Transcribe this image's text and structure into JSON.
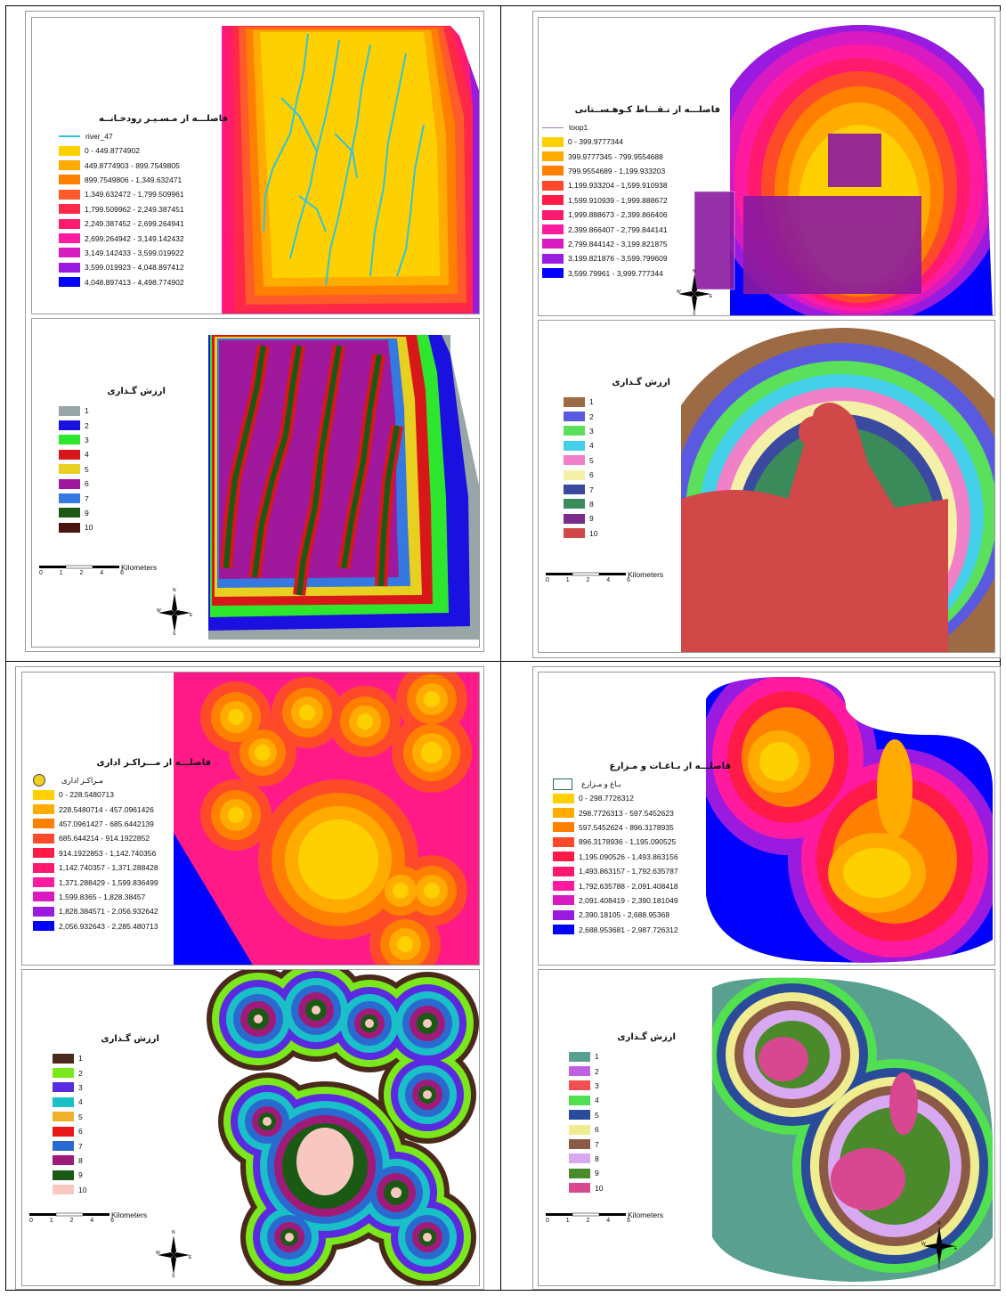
{
  "panels": {
    "river": {
      "top": {
        "title": "فاصلـــه از مـسـیـر رودخـانــه",
        "symbol_label": "river_47",
        "classes": [
          {
            "label": "0 - 449.8774902",
            "color": "#ffd000"
          },
          {
            "label": "449.8774903 - 899.7549805",
            "color": "#ffab00"
          },
          {
            "label": "899.7549806 - 1,349.632471",
            "color": "#ff8000"
          },
          {
            "label": "1,349.632472 - 1,799.509961",
            "color": "#ff5a2a"
          },
          {
            "label": "1,799.509962 - 2,249.387451",
            "color": "#ff2848"
          },
          {
            "label": "2,249.387452 - 2,699.264941",
            "color": "#ff1a6e"
          },
          {
            "label": "2,699.264942 - 3,149.142432",
            "color": "#ff1aa0"
          },
          {
            "label": "3,149.142433 - 3,599.019922",
            "color": "#d81ac0"
          },
          {
            "label": "3,599.019923 - 4,048.897412",
            "color": "#9a1ae0"
          },
          {
            "label": "4,048.897413 - 4,498.774902",
            "color": "#0000ff"
          }
        ]
      },
      "bottom": {
        "title": "ارزش گـذاری",
        "classes": [
          {
            "label": "1",
            "color": "#98a6a8"
          },
          {
            "label": "2",
            "color": "#1a10e0"
          },
          {
            "label": "3",
            "color": "#2ee62e"
          },
          {
            "label": "4",
            "color": "#d81818"
          },
          {
            "label": "5",
            "color": "#e8d020"
          },
          {
            "label": "6",
            "color": "#a0189c"
          },
          {
            "label": "7",
            "color": "#3478e0"
          },
          {
            "label": "9",
            "color": "#1a5a14"
          },
          {
            "label": "10",
            "color": "#4a1414"
          }
        ],
        "scale_unit": "Kilometers",
        "scale_ticks": [
          "0",
          "1",
          "2",
          "4",
          "6"
        ]
      }
    },
    "mountain": {
      "top": {
        "title": "فاصلـــه از نـقـــاط کـوهـســتانی",
        "symbol_label": "toop1",
        "classes": [
          {
            "label": "0 - 399.9777344",
            "color": "#ffd000"
          },
          {
            "label": "399.9777345 - 799.9554688",
            "color": "#ffab00"
          },
          {
            "label": "799.9554689 - 1,199.933203",
            "color": "#ff8000"
          },
          {
            "label": "1,199.933204 - 1,599.910938",
            "color": "#ff4a2a"
          },
          {
            "label": "1,599.910939 - 1,999.888672",
            "color": "#ff1a48"
          },
          {
            "label": "1,999.888673 - 2,399.866406",
            "color": "#ff1a70"
          },
          {
            "label": "2,399.866407 - 2,799.844141",
            "color": "#ff1aa0"
          },
          {
            "label": "2,799.844142 - 3,199.821875",
            "color": "#d81ac0"
          },
          {
            "label": "3,199.821876 - 3,599.799609",
            "color": "#9a1ae0"
          },
          {
            "label": "3,599.79961 - 3,999.777344",
            "color": "#0000ff"
          }
        ],
        "compass": [
          "N",
          "E",
          "S",
          "W"
        ]
      },
      "bottom": {
        "title": "ارزش گـذاری",
        "classes": [
          {
            "label": "1",
            "color": "#9c6a44"
          },
          {
            "label": "2",
            "color": "#5a5ae0"
          },
          {
            "label": "3",
            "color": "#5ae05a"
          },
          {
            "label": "4",
            "color": "#44d0e8"
          },
          {
            "label": "5",
            "color": "#f080c8"
          },
          {
            "label": "6",
            "color": "#f4f0a8"
          },
          {
            "label": "7",
            "color": "#3a4aa0"
          },
          {
            "label": "8",
            "color": "#3a8a5a"
          },
          {
            "label": "9",
            "color": "#7a2a8a"
          },
          {
            "label": "10",
            "color": "#d04848"
          }
        ],
        "scale_unit": "Kilometers",
        "scale_ticks": [
          "0",
          "1",
          "2",
          "4",
          "6"
        ]
      }
    },
    "admin": {
      "top": {
        "title": "فاصلـــه از مـــراکـز اداری",
        "symbol_label": "مـراکـز اداری",
        "classes": [
          {
            "label": "0 - 228.5480713",
            "color": "#ffd000"
          },
          {
            "label": "228.5480714 - 457.0961426",
            "color": "#ffab00"
          },
          {
            "label": "457.0961427 - 685.6442139",
            "color": "#ff8000"
          },
          {
            "label": "685.644214 - 914.1922852",
            "color": "#ff4a2a"
          },
          {
            "label": "914.1922853 - 1,142.740356",
            "color": "#ff1a48"
          },
          {
            "label": "1,142.740357 - 1,371.288428",
            "color": "#ff1a70"
          },
          {
            "label": "1,371.288429 - 1,599.836499",
            "color": "#ff1aa0"
          },
          {
            "label": "1,599.8365 - 1,828.38457",
            "color": "#d81ac0"
          },
          {
            "label": "1,828.384571 - 2,056.932642",
            "color": "#9a1ae0"
          },
          {
            "label": "2,056.932643 - 2,285.480713",
            "color": "#0000ff"
          }
        ]
      },
      "bottom": {
        "title": "ارزش گـذاری",
        "classes": [
          {
            "label": "1",
            "color": "#4a2a1a"
          },
          {
            "label": "2",
            "color": "#7ae81a"
          },
          {
            "label": "3",
            "color": "#5a2ae0"
          },
          {
            "label": "4",
            "color": "#1ac0c8"
          },
          {
            "label": "5",
            "color": "#f0b02a"
          },
          {
            "label": "6",
            "color": "#e81818"
          },
          {
            "label": "7",
            "color": "#2a6ad0"
          },
          {
            "label": "8",
            "color": "#a01a7a"
          },
          {
            "label": "9",
            "color": "#1a5a14"
          },
          {
            "label": "10",
            "color": "#f8c8c0"
          }
        ],
        "scale_unit": "Kilometers",
        "scale_ticks": [
          "0",
          "1",
          "2",
          "4",
          "6"
        ],
        "compass": [
          "N",
          "E",
          "S",
          "W"
        ]
      }
    },
    "gardens": {
      "top": {
        "title": "فاصلـــه از بـاغـات و مـزارع",
        "symbol_label": "بـاغ و مـزارع",
        "classes": [
          {
            "label": "0 - 298.7726312",
            "color": "#ffd000"
          },
          {
            "label": "298.7726313 - 597.5452623",
            "color": "#ffab00"
          },
          {
            "label": "597.5452624 - 896.3178935",
            "color": "#ff8000"
          },
          {
            "label": "896.3178936 - 1,195.090525",
            "color": "#ff4a2a"
          },
          {
            "label": "1,195.090526 - 1,493.863156",
            "color": "#ff1a48"
          },
          {
            "label": "1,493.863157 - 1,792.635787",
            "color": "#ff1a70"
          },
          {
            "label": "1,792.635788 - 2,091.408418",
            "color": "#ff1aa0"
          },
          {
            "label": "2,091.408419 - 2,390.181049",
            "color": "#d81ac0"
          },
          {
            "label": "2,390.18105 - 2,688.95368",
            "color": "#9a1ae0"
          },
          {
            "label": "2,688.953681 - 2,987.726312",
            "color": "#0000ff"
          }
        ]
      },
      "bottom": {
        "title": "ارزش گـذاری",
        "classes": [
          {
            "label": "1",
            "color": "#5aa090"
          },
          {
            "label": "2",
            "color": "#c060e0"
          },
          {
            "label": "3",
            "color": "#f05050"
          },
          {
            "label": "4",
            "color": "#50e050"
          },
          {
            "label": "5",
            "color": "#2a4a9a"
          },
          {
            "label": "6",
            "color": "#f0ec90"
          },
          {
            "label": "7",
            "color": "#8a5a44"
          },
          {
            "label": "8",
            "color": "#d8a8f0"
          },
          {
            "label": "9",
            "color": "#4a8a2a"
          },
          {
            "label": "10",
            "color": "#d84890"
          }
        ],
        "scale_unit": "Kilometers",
        "scale_ticks": [
          "0",
          "1",
          "2",
          "4",
          "6"
        ],
        "compass": [
          "N",
          "E",
          "S",
          "W"
        ]
      }
    }
  },
  "compass_river": [
    "N",
    "E",
    "S",
    "W"
  ]
}
